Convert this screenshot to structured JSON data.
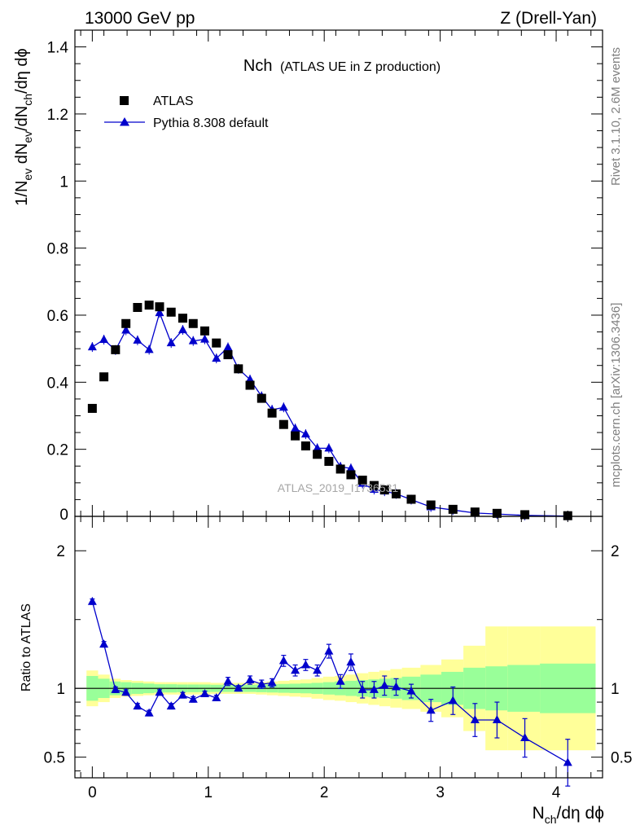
{
  "header": {
    "left": "13000 GeV pp",
    "right": "Z (Drell-Yan)"
  },
  "side_labels": {
    "rivet": "Rivet 3.1.10,  2.6M events",
    "mcplots": "mcplots.cern.ch [arXiv:1306.3436]"
  },
  "watermark": "ATLAS_2019_I1736531",
  "chart_data": [
    {
      "type": "scatter",
      "title_main": "Nch",
      "title_sub": "(ATLAS UE in Z production)",
      "ylabel_parts": [
        "1/N",
        "ev",
        " dN",
        "ev",
        "/dN",
        "ch",
        "/dη dϕ"
      ],
      "xlim": [
        -0.15,
        4.4
      ],
      "ylim": [
        0,
        1.45
      ],
      "y_ticks": [
        0.2,
        0.4,
        0.6,
        0.8,
        1,
        1.2,
        1.4
      ],
      "y_tick_labels": [
        "0.2",
        "0.4",
        "0.6",
        "0.8",
        "1",
        "1.2",
        "1.4"
      ],
      "y_bottom_label": "0",
      "series": [
        {
          "name": "ATLAS",
          "marker": "square",
          "color": "#000000",
          "x": [
            0,
            0.1,
            0.2,
            0.29,
            0.39,
            0.49,
            0.58,
            0.68,
            0.78,
            0.87,
            0.97,
            1.07,
            1.17,
            1.26,
            1.36,
            1.46,
            1.55,
            1.65,
            1.75,
            1.84,
            1.94,
            2.04,
            2.14,
            2.23,
            2.33,
            2.43,
            2.52,
            2.62,
            2.75,
            2.92,
            3.11,
            3.3,
            3.49,
            3.73,
            4.1
          ],
          "y": [
            0.322,
            0.416,
            0.497,
            0.575,
            0.623,
            0.63,
            0.625,
            0.609,
            0.591,
            0.575,
            0.553,
            0.517,
            0.482,
            0.44,
            0.391,
            0.352,
            0.308,
            0.274,
            0.24,
            0.21,
            0.185,
            0.164,
            0.141,
            0.124,
            0.108,
            0.092,
            0.079,
            0.067,
            0.051,
            0.034,
            0.021,
            0.013,
            0.009,
            0.005,
            0.002
          ]
        },
        {
          "name": "Pythia 8.308 default",
          "marker": "triangle",
          "color": "#0000cc",
          "x": [
            0,
            0.1,
            0.2,
            0.29,
            0.39,
            0.49,
            0.58,
            0.68,
            0.78,
            0.87,
            0.97,
            1.07,
            1.17,
            1.26,
            1.36,
            1.46,
            1.55,
            1.65,
            1.75,
            1.84,
            1.94,
            2.04,
            2.14,
            2.23,
            2.33,
            2.43,
            2.52,
            2.62,
            2.75,
            2.92,
            3.11,
            3.3,
            3.49,
            3.73,
            4.1
          ],
          "y": [
            0.505,
            0.527,
            0.496,
            0.555,
            0.525,
            0.497,
            0.607,
            0.517,
            0.556,
            0.523,
            0.528,
            0.471,
            0.504,
            0.44,
            0.408,
            0.358,
            0.318,
            0.325,
            0.262,
            0.245,
            0.203,
            0.203,
            0.148,
            0.143,
            0.098,
            0.08,
            0.075,
            0.067,
            0.05,
            0.028,
            0.019,
            0.01,
            0.007,
            0.003,
            0.001
          ]
        }
      ]
    },
    {
      "type": "line",
      "ylabel": "Ratio to ATLAS",
      "xlabel_parts": [
        "N",
        "ch",
        "/dη dϕ"
      ],
      "xlim": [
        -0.15,
        4.4
      ],
      "ylim": [
        0.35,
        2.25
      ],
      "y_ticks": [
        0.5,
        1,
        2
      ],
      "y_tick_labels": [
        "0.5",
        "1",
        "2"
      ],
      "x_ticks": [
        0,
        1,
        2,
        3,
        4
      ],
      "x_tick_labels": [
        "0",
        "1",
        "2",
        "3",
        "4"
      ],
      "reference": 1,
      "bands": {
        "colors": {
          "outer": "#ffff99",
          "inner": "#99ff99"
        },
        "edges": [
          -0.05,
          0.05,
          0.15,
          0.245,
          0.34,
          0.44,
          0.535,
          0.63,
          0.73,
          0.825,
          0.92,
          1.02,
          1.12,
          1.215,
          1.31,
          1.41,
          1.505,
          1.6,
          1.7,
          1.795,
          1.89,
          1.99,
          2.09,
          2.185,
          2.28,
          2.38,
          2.475,
          2.57,
          2.67,
          2.83,
          3.01,
          3.2,
          3.39,
          3.58,
          3.86,
          4.34
        ],
        "inner_half": [
          0.09,
          0.07,
          0.05,
          0.045,
          0.04,
          0.035,
          0.03,
          0.03,
          0.028,
          0.028,
          0.028,
          0.026,
          0.026,
          0.026,
          0.026,
          0.028,
          0.03,
          0.032,
          0.034,
          0.036,
          0.04,
          0.045,
          0.05,
          0.055,
          0.06,
          0.065,
          0.07,
          0.075,
          0.085,
          0.1,
          0.12,
          0.15,
          0.16,
          0.17,
          0.18
        ],
        "outer_half": [
          0.13,
          0.1,
          0.07,
          0.06,
          0.055,
          0.05,
          0.045,
          0.045,
          0.045,
          0.045,
          0.045,
          0.04,
          0.04,
          0.04,
          0.04,
          0.045,
          0.05,
          0.055,
          0.06,
          0.065,
          0.075,
          0.085,
          0.09,
          0.1,
          0.11,
          0.12,
          0.13,
          0.14,
          0.15,
          0.17,
          0.21,
          0.31,
          0.45,
          0.45,
          0.45
        ]
      },
      "series": [
        {
          "name": "Pythia 8.308 default",
          "color": "#0000cc",
          "x": [
            0,
            0.1,
            0.2,
            0.29,
            0.39,
            0.49,
            0.58,
            0.68,
            0.78,
            0.87,
            0.97,
            1.07,
            1.17,
            1.26,
            1.36,
            1.46,
            1.55,
            1.65,
            1.75,
            1.84,
            1.94,
            2.04,
            2.14,
            2.23,
            2.33,
            2.43,
            2.52,
            2.62,
            2.75,
            2.92,
            3.11,
            3.3,
            3.49,
            3.73,
            4.1
          ],
          "y": [
            1.63,
            1.32,
            0.99,
            0.97,
            0.87,
            0.82,
            0.97,
            0.87,
            0.95,
            0.92,
            0.96,
            0.93,
            1.05,
            1.0,
            1.06,
            1.03,
            1.04,
            1.2,
            1.13,
            1.17,
            1.13,
            1.27,
            1.05,
            1.19,
            0.99,
            0.99,
            1.02,
            1.01,
            0.98,
            0.84,
            0.91,
            0.77,
            0.77,
            0.64,
            0.46
          ],
          "err": [
            0.02,
            0.02,
            0.02,
            0.02,
            0.02,
            0.02,
            0.02,
            0.02,
            0.02,
            0.02,
            0.02,
            0.02,
            0.03,
            0.02,
            0.03,
            0.03,
            0.03,
            0.04,
            0.04,
            0.04,
            0.04,
            0.05,
            0.05,
            0.06,
            0.06,
            0.06,
            0.07,
            0.06,
            0.05,
            0.08,
            0.1,
            0.12,
            0.13,
            0.14,
            0.17
          ]
        }
      ]
    }
  ]
}
